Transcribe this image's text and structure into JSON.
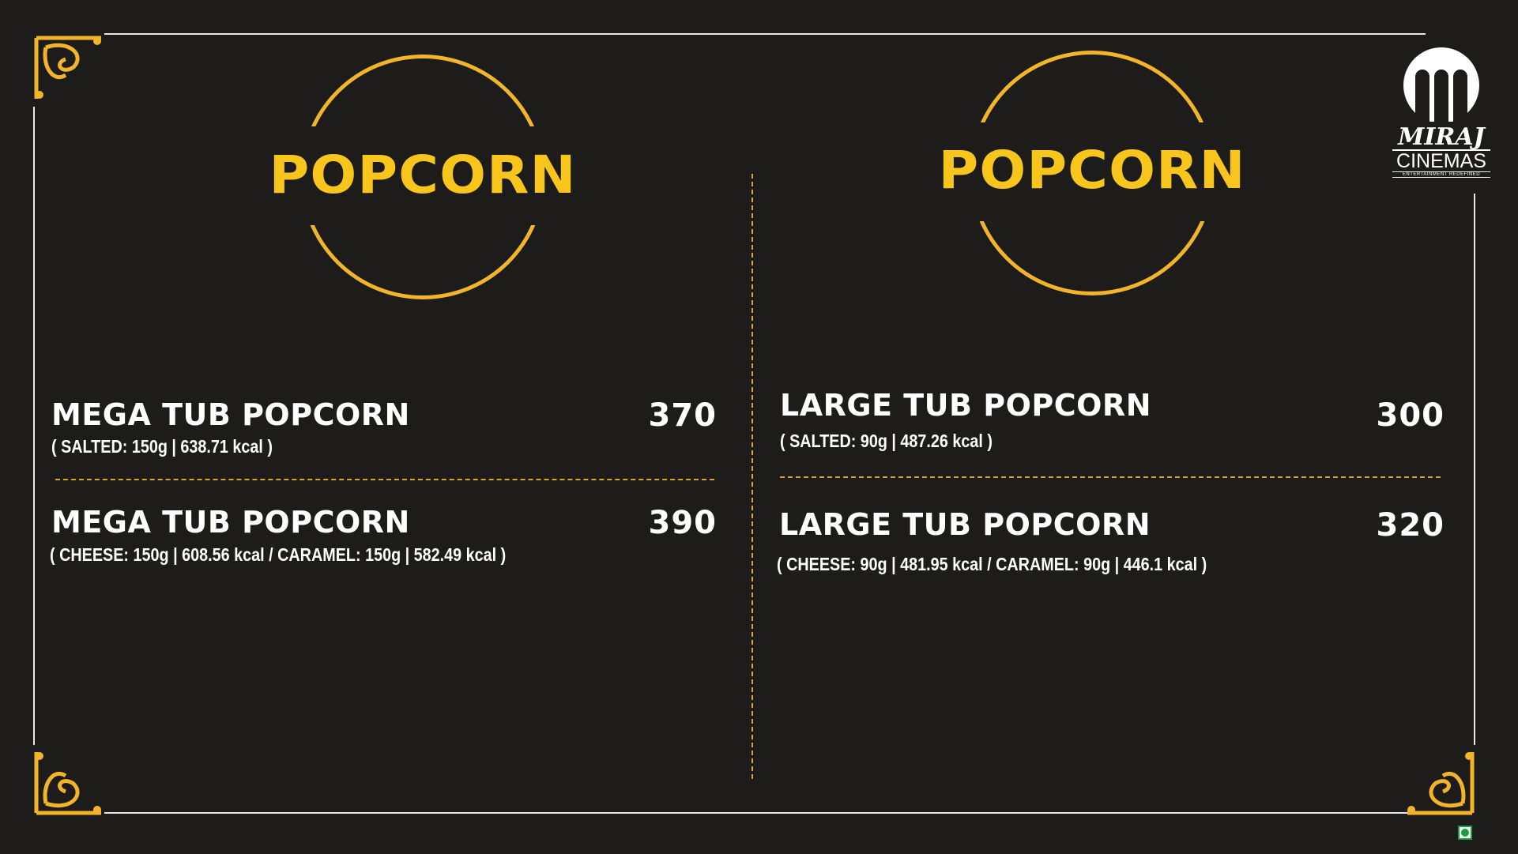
{
  "brand": {
    "logo_name": "MIRAJ",
    "logo_sub": "CINEMAS",
    "tagline": "ENTERTAINMENT REDEFINED"
  },
  "colors": {
    "background": "#1d1c1a",
    "accent": "#f7c51b",
    "ring": "#f2b52a",
    "text": "#ffffff",
    "veg_mark": "#1a9e3a"
  },
  "sections": [
    {
      "heading": "POPCORN",
      "items": [
        {
          "name": "MEGA TUB POPCORN",
          "details": "( SALTED: 150g | 638.71 kcal )",
          "price": "370"
        },
        {
          "name": "MEGA TUB POPCORN",
          "details": "( CHEESE: 150g | 608.56 kcal  /  CARAMEL: 150g | 582.49 kcal )",
          "price": "390"
        }
      ]
    },
    {
      "heading": "POPCORN",
      "items": [
        {
          "name": "LARGE TUB POPCORN",
          "details": "( SALTED: 90g | 487.26 kcal )",
          "price": "300"
        },
        {
          "name": "LARGE TUB POPCORN",
          "details": "( CHEESE: 90g | 481.95 kcal  /  CARAMEL: 90g | 446.1 kcal )",
          "price": "320"
        }
      ]
    }
  ]
}
